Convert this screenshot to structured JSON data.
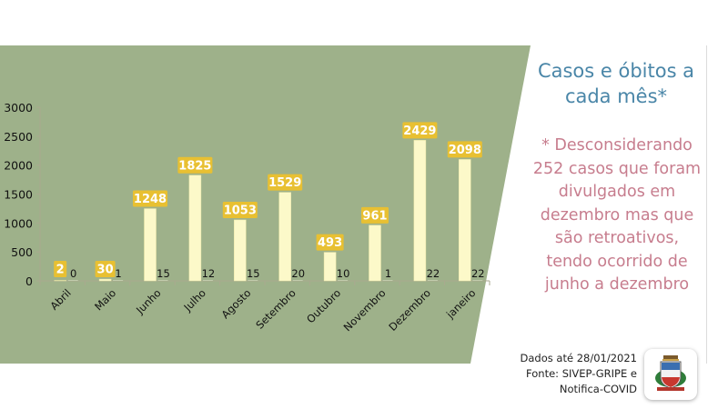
{
  "colors": {
    "plot_background": "#9eb18a",
    "cases_bar": "#fcf9c9",
    "cases_label_box": "#e8c032",
    "cases_label_text": "#ffffff",
    "title_text": "#4a86a8",
    "note_text": "#c77d8e"
  },
  "chart_data": {
    "type": "bar",
    "categories": [
      "Abril",
      "Maio",
      "Junho",
      "Julho",
      "Agosto",
      "Setembro",
      "Outubro",
      "Novembro",
      "Dezembro",
      "janeiro"
    ],
    "series": [
      {
        "values": [
          2,
          30,
          1248,
          1825,
          1053,
          1529,
          493,
          961,
          2429,
          2098
        ]
      },
      {
        "values": [
          0,
          1,
          15,
          12,
          15,
          20,
          10,
          1,
          22,
          22
        ]
      }
    ],
    "ylim": [
      0,
      3000
    ],
    "yticks": [
      0,
      500,
      1000,
      1500,
      2000,
      2500,
      3000
    ],
    "title": "",
    "xlabel": "",
    "ylabel": ""
  },
  "panel": {
    "title": "Casos e óbitos  a cada mês*",
    "note": "* Desconsiderando 252 casos que foram divulgados em dezembro mas que são retroativos, tendo ocorrido de junho a dezembro"
  },
  "source": {
    "line1": "Dados até 28/01/2021",
    "line2": "Fonte: SIVEP-GRIPE e",
    "line3": "Notifica-COVID"
  },
  "emblem": {
    "icon": "municipal-coat-of-arms-icon"
  }
}
